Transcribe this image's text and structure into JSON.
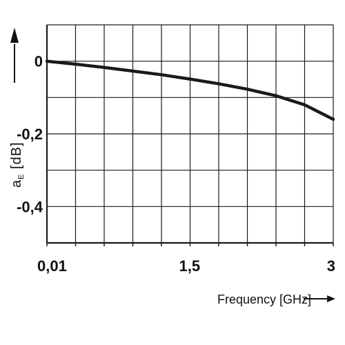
{
  "chart_data": {
    "type": "line",
    "xlabel": "Frequency [GHz]",
    "ylabel_main": "a",
    "ylabel_sub": "E",
    "ylabel_unit": "[dB]",
    "x_ticks": [
      {
        "value": 0.01,
        "label": "0,01"
      },
      {
        "value": 1.5,
        "label": "1,5"
      },
      {
        "value": 3,
        "label": "3"
      }
    ],
    "y_ticks": [
      {
        "value": 0,
        "label": "0"
      },
      {
        "value": -0.2,
        "label": "-0,2"
      },
      {
        "value": -0.4,
        "label": "-0,4"
      }
    ],
    "xlim": [
      0.01,
      3
    ],
    "ylim": [
      -0.5,
      0.1
    ],
    "grid": true,
    "x_gridlines": 10,
    "y_gridlines": 6,
    "series": [
      {
        "x": [
          0.01,
          0.3,
          0.6,
          0.9,
          1.2,
          1.5,
          1.8,
          2.1,
          2.4,
          2.7,
          3.0
        ],
        "y": [
          0.0,
          -0.008,
          -0.017,
          -0.027,
          -0.037,
          -0.049,
          -0.062,
          -0.077,
          -0.095,
          -0.12,
          -0.16
        ]
      }
    ],
    "colors": {
      "line": "#1a1a1a",
      "grid": "#1a1a1a",
      "text": "#111111"
    }
  }
}
